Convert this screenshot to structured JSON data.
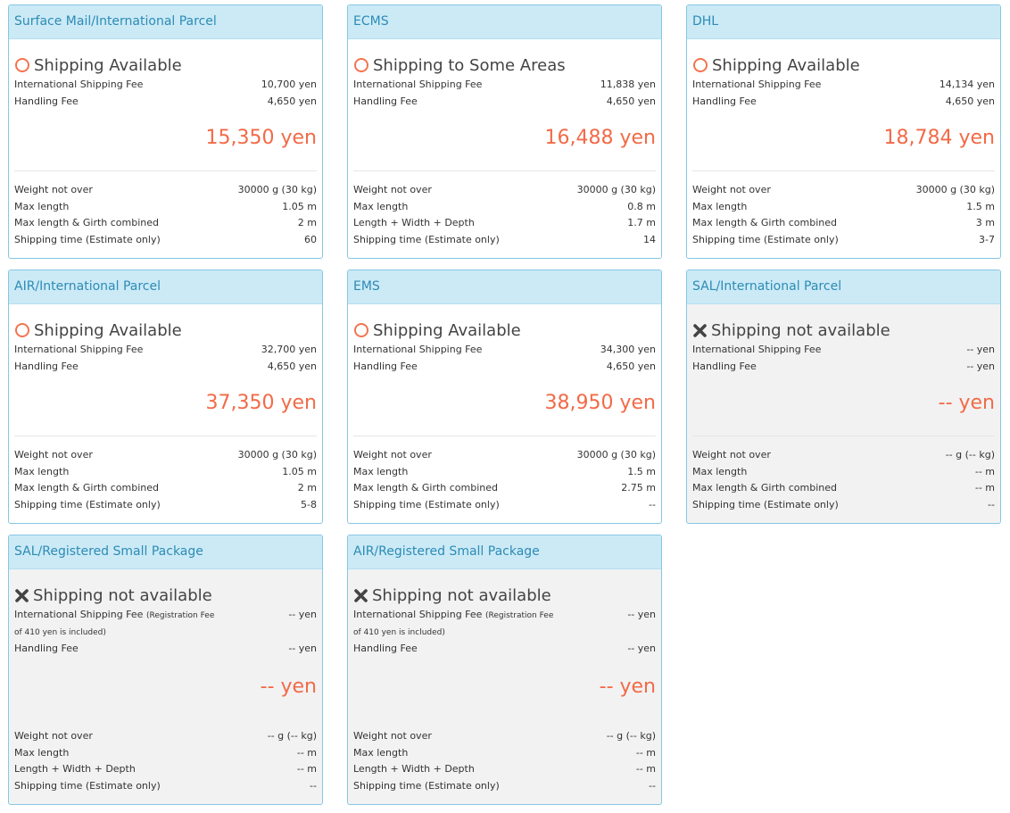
{
  "cards": [
    {
      "title": "Surface Mail/International Parcel",
      "available": true,
      "status": "Shipping Available",
      "intl_fee_label": "International Shipping Fee",
      "intl_fee": "10,700 yen",
      "handling_label": "Handling Fee",
      "handling": "4,650 yen",
      "total": "15,350 yen",
      "specs": [
        {
          "label": "Weight not over",
          "value": "30000 g (30 kg)"
        },
        {
          "label": "Max length",
          "value": "1.05 m"
        },
        {
          "label": "Max length & Girth combined",
          "value": "2 m"
        },
        {
          "label": "Shipping time (Estimate only)",
          "value": "60"
        }
      ]
    },
    {
      "title": "ECMS",
      "available": true,
      "status": "Shipping to Some Areas",
      "intl_fee_label": "International Shipping Fee",
      "intl_fee": "11,838 yen",
      "handling_label": "Handling Fee",
      "handling": "4,650 yen",
      "total": "16,488 yen",
      "specs": [
        {
          "label": "Weight not over",
          "value": "30000 g (30 kg)"
        },
        {
          "label": "Max length",
          "value": "0.8 m"
        },
        {
          "label": "Length + Width + Depth",
          "value": "1.7 m"
        },
        {
          "label": "Shipping time (Estimate only)",
          "value": "14"
        }
      ]
    },
    {
      "title": "DHL",
      "available": true,
      "status": "Shipping Available",
      "intl_fee_label": "International Shipping Fee",
      "intl_fee": "14,134 yen",
      "handling_label": "Handling Fee",
      "handling": "4,650 yen",
      "total": "18,784 yen",
      "specs": [
        {
          "label": "Weight not over",
          "value": "30000 g (30 kg)"
        },
        {
          "label": "Max length",
          "value": "1.5 m"
        },
        {
          "label": "Max length & Girth combined",
          "value": "3 m"
        },
        {
          "label": "Shipping time (Estimate only)",
          "value": "3-7"
        }
      ]
    },
    {
      "title": "AIR/International Parcel",
      "available": true,
      "status": "Shipping Available",
      "intl_fee_label": "International Shipping Fee",
      "intl_fee": "32,700 yen",
      "handling_label": "Handling Fee",
      "handling": "4,650 yen",
      "total": "37,350 yen",
      "specs": [
        {
          "label": "Weight not over",
          "value": "30000 g (30 kg)"
        },
        {
          "label": "Max length",
          "value": "1.05 m"
        },
        {
          "label": "Max length & Girth combined",
          "value": "2 m"
        },
        {
          "label": "Shipping time (Estimate only)",
          "value": "5-8"
        }
      ]
    },
    {
      "title": "EMS",
      "available": true,
      "status": "Shipping Available",
      "intl_fee_label": "International Shipping Fee",
      "intl_fee": "34,300 yen",
      "handling_label": "Handling Fee",
      "handling": "4,650 yen",
      "total": "38,950 yen",
      "specs": [
        {
          "label": "Weight not over",
          "value": "30000 g (30 kg)"
        },
        {
          "label": "Max length",
          "value": "1.5 m"
        },
        {
          "label": "Max length & Girth combined",
          "value": "2.75 m"
        },
        {
          "label": "Shipping time (Estimate only)",
          "value": "--"
        }
      ]
    },
    {
      "title": "SAL/International Parcel",
      "available": false,
      "status": "Shipping not available",
      "intl_fee_label": "International Shipping Fee",
      "intl_fee": "-- yen",
      "handling_label": "Handling Fee",
      "handling": "-- yen",
      "total": "-- yen",
      "specs": [
        {
          "label": "Weight not over",
          "value": "-- g (-- kg)"
        },
        {
          "label": "Max length",
          "value": "-- m"
        },
        {
          "label": "Max length & Girth combined",
          "value": "-- m"
        },
        {
          "label": "Shipping time (Estimate only)",
          "value": "--"
        }
      ]
    },
    {
      "title": "SAL/Registered Small Package",
      "available": false,
      "status": "Shipping not available",
      "intl_fee_label": "International Shipping Fee",
      "reg_note_a": "(Registration Fee",
      "reg_note_b": "of 410 yen is included)",
      "intl_fee": "-- yen",
      "handling_label": "Handling Fee",
      "handling": "-- yen",
      "total": "-- yen",
      "specs": [
        {
          "label": "Weight not over",
          "value": "-- g (-- kg)"
        },
        {
          "label": "Max length",
          "value": "-- m"
        },
        {
          "label": "Length + Width + Depth",
          "value": "-- m"
        },
        {
          "label": "Shipping time (Estimate only)",
          "value": "--"
        }
      ]
    },
    {
      "title": "AIR/Registered Small Package",
      "available": false,
      "status": "Shipping not available",
      "intl_fee_label": "International Shipping Fee",
      "reg_note_a": "(Registration Fee",
      "reg_note_b": "of 410 yen is included)",
      "intl_fee": "-- yen",
      "handling_label": "Handling Fee",
      "handling": "-- yen",
      "total": "-- yen",
      "specs": [
        {
          "label": "Weight not over",
          "value": "-- g (-- kg)"
        },
        {
          "label": "Max length",
          "value": "-- m"
        },
        {
          "label": "Length + Width + Depth",
          "value": "-- m"
        },
        {
          "label": "Shipping time (Estimate only)",
          "value": "--"
        }
      ]
    }
  ],
  "colors": {
    "header_bg": "#cbeaf6",
    "header_text": "#2d8bb5",
    "border": "#86c7e3",
    "total_text": "#f26a47",
    "unavailable_bg": "#f2f2f2"
  },
  "icons": {
    "available": "circle-icon",
    "unavailable": "x-icon"
  }
}
